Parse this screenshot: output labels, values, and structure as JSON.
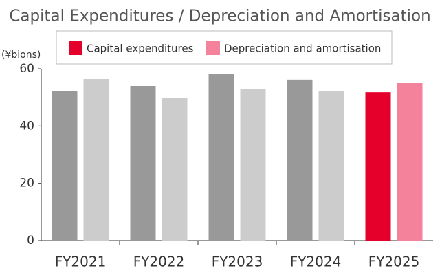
{
  "chart_data": {
    "type": "bar",
    "title": "Capital Expenditures / Depreciation and Amortisation",
    "y_label": "(¥bions)",
    "categories": [
      "FY2021",
      "FY2022",
      "FY2023",
      "FY2024",
      "FY2025"
    ],
    "series": [
      {
        "name": "Capital expenditures",
        "color": "#e4002b",
        "colors": [
          "#999999",
          "#999999",
          "#999999",
          "#999999",
          "#e4002b"
        ],
        "values": [
          52.3,
          54,
          58.3,
          56.2,
          51.8
        ]
      },
      {
        "name": "Depreciation and amortisation",
        "color": "#f4829a",
        "colors": [
          "#cccccc",
          "#cccccc",
          "#cccccc",
          "#cccccc",
          "#f4829a"
        ],
        "values": [
          56.4,
          49.9,
          52.8,
          52.3,
          55
        ]
      }
    ],
    "ylim": [
      0,
      60
    ],
    "yticks": [
      0,
      20,
      40,
      60
    ]
  }
}
